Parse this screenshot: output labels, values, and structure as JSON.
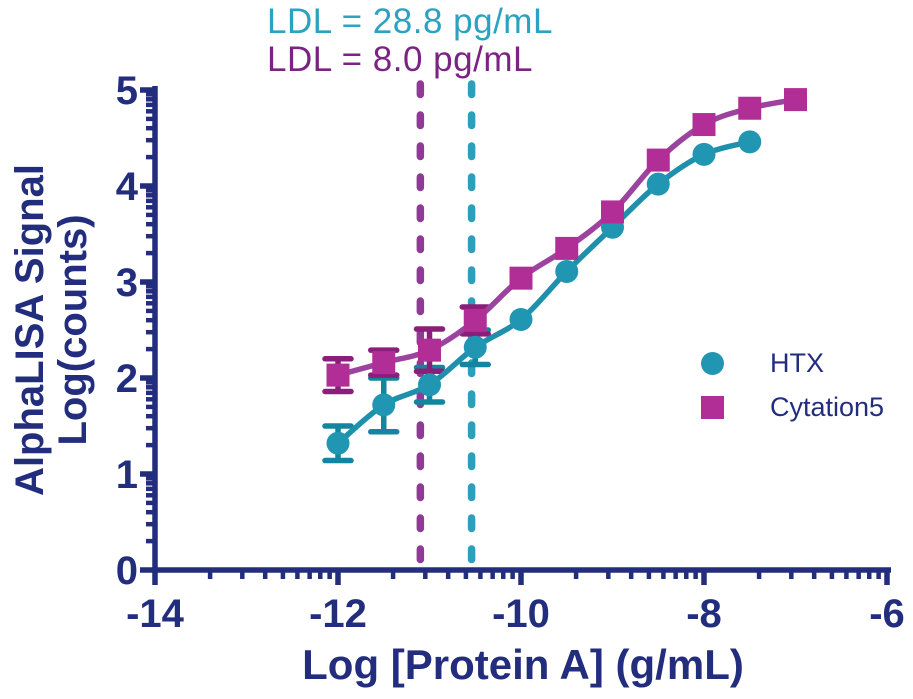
{
  "chart_data": {
    "type": "scatter",
    "subtype": "log dose-response curves with error bars and fitted sigmoid lines",
    "title": "",
    "xlabel": "Log [Protein A] (g/mL)",
    "ylabel_line1": "AlphaLISA Signal",
    "ylabel_line2": "Log(counts)",
    "xlim": [
      -14,
      -6
    ],
    "ylim": [
      0,
      5
    ],
    "x_ticks": [
      -14,
      -12,
      -10,
      -8,
      -6
    ],
    "y_ticks": [
      0,
      1,
      2,
      3,
      4,
      5
    ],
    "minor_ticks": "logarithmic (2-9) subdivisions between each pair of major ticks, on both axes",
    "grid": "off",
    "axis_color": "#232D7D",
    "legend_position": "right-middle",
    "series": [
      {
        "name": "HTX",
        "marker": "circle",
        "marker_color": "#2196B2",
        "curve_color": "#1E90AB",
        "error_color": "#14859F",
        "x": [
          -12,
          -11.5,
          -11,
          -10.5,
          -10,
          -9.5,
          -9,
          -8.5,
          -8,
          -7.5
        ],
        "y": [
          1.32,
          1.72,
          1.93,
          2.32,
          2.61,
          3.11,
          3.57,
          4.02,
          4.33,
          4.46
        ],
        "yerr": [
          0.18,
          0.28,
          0.18,
          0.18,
          0,
          0,
          0,
          0,
          0,
          0
        ]
      },
      {
        "name": "Cytation5",
        "marker": "square",
        "marker_color": "#B02E96",
        "curve_color": "#9B439F",
        "error_color": "#8A1E78",
        "x": [
          -12,
          -11.5,
          -11,
          -10.5,
          -10,
          -9.5,
          -9,
          -8.5,
          -8,
          -7.5,
          -7
        ],
        "y": [
          2.03,
          2.16,
          2.29,
          2.6,
          3.04,
          3.35,
          3.73,
          4.27,
          4.64,
          4.81,
          4.9
        ],
        "yerr": [
          0.17,
          0.13,
          0.22,
          0.14,
          0,
          0,
          0,
          0,
          0,
          0,
          0
        ]
      }
    ],
    "vlines": [
      {
        "label": "LDL = 28.8 pg/mL",
        "x": -10.54,
        "line_color": "#2B9FBB",
        "text_color": "#2AA2C0",
        "series": "HTX"
      },
      {
        "label": "LDL = 8.0 pg/mL",
        "x": -11.1,
        "line_color": "#8E3A96",
        "text_color": "#7B2382",
        "series": "Cytation5"
      }
    ]
  }
}
